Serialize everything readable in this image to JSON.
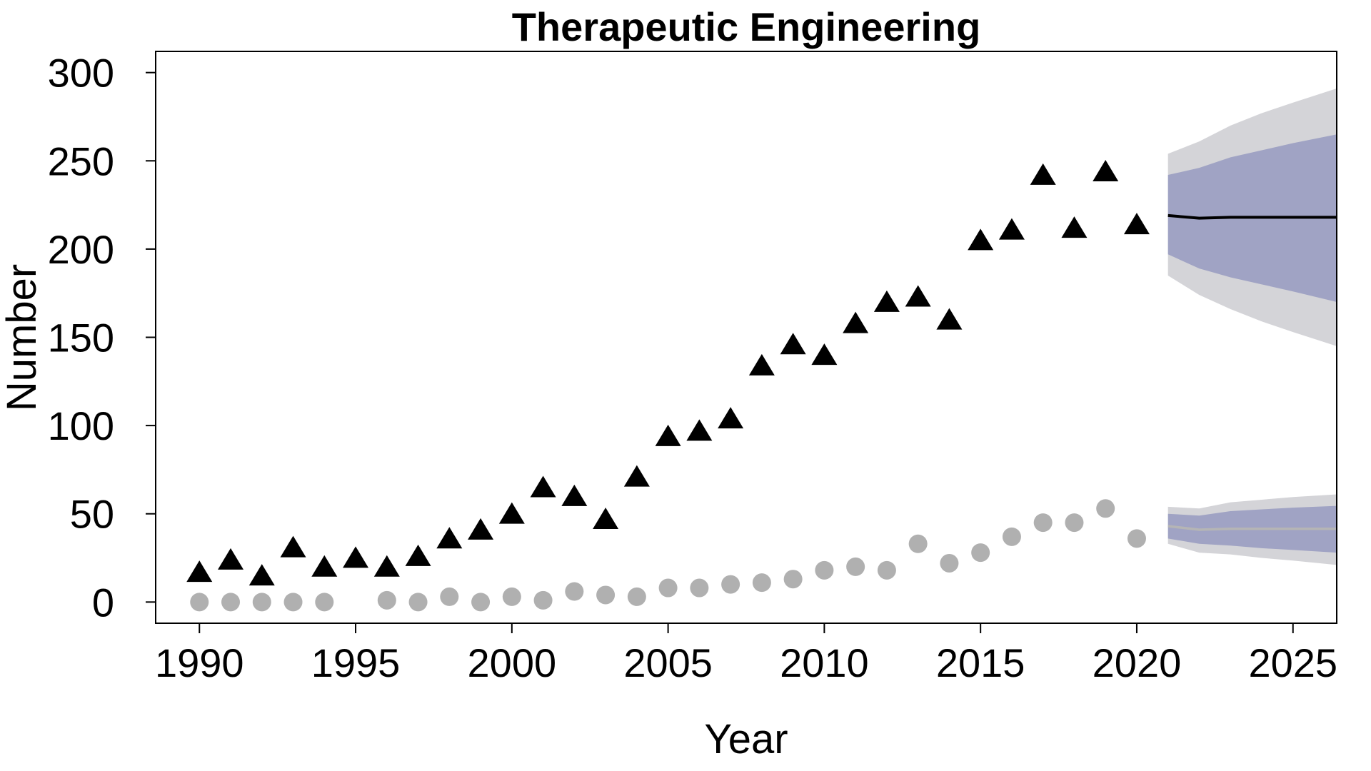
{
  "chart_data": {
    "type": "scatter",
    "title": "Therapeutic Engineering",
    "xlabel": "Year",
    "ylabel": "Number",
    "xlim": [
      1988.6,
      2026.4
    ],
    "ylim": [
      -12,
      312
    ],
    "xticks": [
      1990,
      1995,
      2000,
      2005,
      2010,
      2015,
      2020,
      2025
    ],
    "yticks": [
      0,
      50,
      100,
      150,
      200,
      250,
      300
    ],
    "grid": false,
    "legend": null,
    "series": [
      {
        "marker": "triangle",
        "color": "#000000",
        "x": [
          1990,
          1991,
          1992,
          1993,
          1994,
          1995,
          1996,
          1997,
          1998,
          1999,
          2000,
          2001,
          2002,
          2003,
          2004,
          2005,
          2006,
          2007,
          2008,
          2009,
          2010,
          2011,
          2012,
          2013,
          2014,
          2015,
          2016,
          2017,
          2018,
          2019,
          2020
        ],
        "y": [
          16,
          23,
          14,
          30,
          19,
          24,
          19,
          25,
          35,
          40,
          49,
          64,
          59,
          46,
          70,
          93,
          96,
          103,
          133,
          145,
          139,
          157,
          169,
          172,
          159,
          204,
          210,
          241,
          211,
          243,
          213
        ]
      },
      {
        "marker": "circle",
        "color": "#b0b0b0",
        "x": [
          1990,
          1991,
          1992,
          1993,
          1994,
          1996,
          1997,
          1998,
          1999,
          2000,
          2001,
          2002,
          2003,
          2004,
          2005,
          2006,
          2007,
          2008,
          2009,
          2010,
          2011,
          2012,
          2013,
          2014,
          2015,
          2016,
          2017,
          2018,
          2019,
          2020
        ],
        "y": [
          0,
          0,
          0,
          0,
          0,
          1,
          0,
          3,
          0,
          3,
          1,
          6,
          4,
          3,
          8,
          8,
          10,
          11,
          13,
          18,
          20,
          18,
          33,
          22,
          28,
          37,
          45,
          45,
          53,
          36
        ]
      }
    ],
    "forecasts": [
      {
        "line_color": "#000000",
        "inner_color": "#a0a3c4",
        "outer_color": "#d4d4d8",
        "x": [
          2021,
          2022,
          2023,
          2024,
          2025,
          2026.4
        ],
        "mean": [
          219,
          217.5,
          218,
          218,
          218,
          218
        ],
        "lo80": [
          197,
          189,
          184,
          180,
          176,
          170
        ],
        "hi80": [
          242,
          246,
          252,
          256,
          260,
          265
        ],
        "lo95": [
          185,
          174,
          166,
          159,
          153,
          145
        ],
        "hi95": [
          254,
          261,
          270,
          277,
          283,
          291
        ]
      },
      {
        "line_color": "#b5b5b5",
        "inner_color": "#a0a3c4",
        "outer_color": "#d4d4d8",
        "x": [
          2021,
          2022,
          2023,
          2024,
          2025,
          2026.4
        ],
        "mean": [
          43,
          41,
          41.5,
          41.5,
          41.5,
          41.5
        ],
        "lo80": [
          36,
          33,
          32,
          30.5,
          29.5,
          28
        ],
        "hi80": [
          50,
          49,
          51.5,
          52.5,
          53.5,
          54.5
        ],
        "lo95": [
          33,
          28,
          27,
          25,
          23.5,
          21
        ],
        "hi95": [
          54,
          53,
          56.5,
          58,
          59.5,
          61
        ]
      }
    ]
  }
}
